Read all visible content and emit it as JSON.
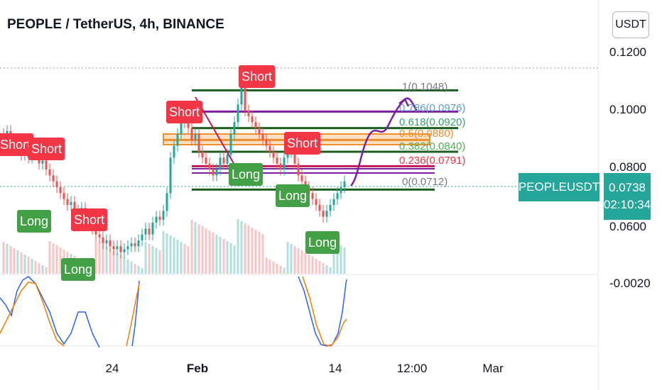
{
  "header": {
    "title": "PEOPLE / TetherUS, 4h, BINANCE",
    "currency_button": "USDT"
  },
  "chart_data": {
    "type": "line",
    "title": "PEOPLE / TetherUS, 4h, BINANCE",
    "price_axis": [
      "0.1200",
      "0.1000",
      "0.0800",
      "0.0600"
    ],
    "oscillator_axis": [
      "-0.0020"
    ],
    "time_axis": [
      {
        "label": "24",
        "bold": false
      },
      {
        "label": "Feb",
        "bold": true
      },
      {
        "label": "14",
        "bold": false
      },
      {
        "label": "12:00",
        "bold": false
      },
      {
        "label": "Mar",
        "bold": false
      }
    ],
    "last_price": {
      "symbol": "PEOPLEUSDT",
      "value": "0.0738",
      "countdown": "02:10:34"
    },
    "fib_levels": [
      {
        "level": "1",
        "price": "0.1048",
        "text": "1(0.1048)",
        "color": "#787b86"
      },
      {
        "level": "0.786",
        "price": "0.0976",
        "text": "0.786(0.0976)",
        "color": "#5aa0c0"
      },
      {
        "level": "0.618",
        "price": "0.0920",
        "text": "0.618(0.0920)",
        "color": "#33a36a"
      },
      {
        "level": "0.5",
        "price": "0.0880",
        "text": "0.5(0.0880)",
        "color": "#ef8f2e"
      },
      {
        "level": "0.382",
        "price": "0.0840",
        "text": "0.382(0.0840)",
        "color": "#4caf50"
      },
      {
        "level": "0.236",
        "price": "0.0791",
        "text": "0.236(0.0791)",
        "color": "#f23645"
      },
      {
        "level": "0",
        "price": "0.0712",
        "text": "0(0.0712)",
        "color": "#787b86"
      }
    ],
    "signals": [
      {
        "type": "short",
        "text": "Short"
      },
      {
        "type": "short",
        "text": "Short"
      },
      {
        "type": "long",
        "text": "Long"
      },
      {
        "type": "short",
        "text": "Short"
      },
      {
        "type": "long",
        "text": "Long"
      },
      {
        "type": "short",
        "text": "Short"
      },
      {
        "type": "long",
        "text": "Long"
      },
      {
        "type": "short",
        "text": "Short"
      },
      {
        "type": "short",
        "text": "Short"
      },
      {
        "type": "long",
        "text": "Long"
      },
      {
        "type": "long",
        "text": "Long"
      }
    ],
    "colors": {
      "up": "#26a69a",
      "down": "#ef5350",
      "projection": "#7b1fa2",
      "oscillator_fast": "#2962ff",
      "oscillator_slow": "#f57c00"
    }
  }
}
